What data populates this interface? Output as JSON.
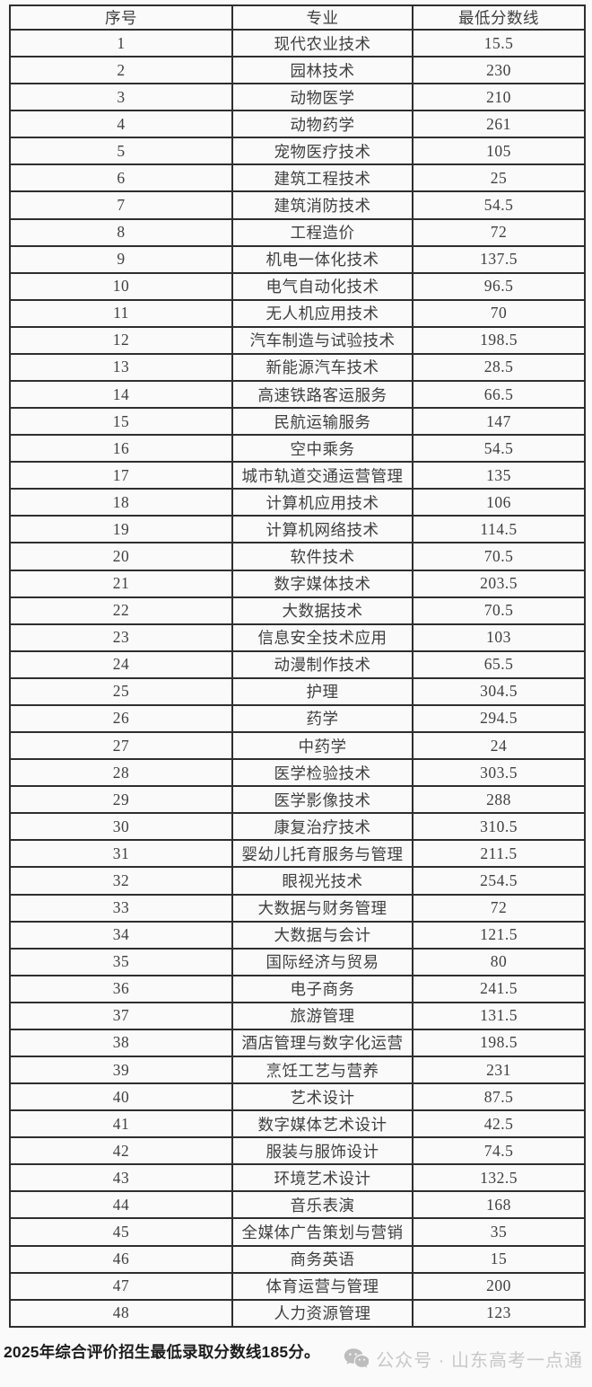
{
  "page": {
    "background": "#fbfafa"
  },
  "colors": {
    "table_border": "#2e2e2e",
    "table_text": "#3f3f3f",
    "note_text": "#1c1c1c",
    "watermark_gray": "#c8c8c8"
  },
  "table": {
    "columns": [
      "序号",
      "专业",
      "最低分数线"
    ],
    "rows": [
      [
        "1",
        "现代农业技术",
        "15.5"
      ],
      [
        "2",
        "园林技术",
        "230"
      ],
      [
        "3",
        "动物医学",
        "210"
      ],
      [
        "4",
        "动物药学",
        "261"
      ],
      [
        "5",
        "宠物医疗技术",
        "105"
      ],
      [
        "6",
        "建筑工程技术",
        "25"
      ],
      [
        "7",
        "建筑消防技术",
        "54.5"
      ],
      [
        "8",
        "工程造价",
        "72"
      ],
      [
        "9",
        "机电一体化技术",
        "137.5"
      ],
      [
        "10",
        "电气自动化技术",
        "96.5"
      ],
      [
        "11",
        "无人机应用技术",
        "70"
      ],
      [
        "12",
        "汽车制造与试验技术",
        "198.5"
      ],
      [
        "13",
        "新能源汽车技术",
        "28.5"
      ],
      [
        "14",
        "高速铁路客运服务",
        "66.5"
      ],
      [
        "15",
        "民航运输服务",
        "147"
      ],
      [
        "16",
        "空中乘务",
        "54.5"
      ],
      [
        "17",
        "城市轨道交通运营管理",
        "135"
      ],
      [
        "18",
        "计算机应用技术",
        "106"
      ],
      [
        "19",
        "计算机网络技术",
        "114.5"
      ],
      [
        "20",
        "软件技术",
        "70.5"
      ],
      [
        "21",
        "数字媒体技术",
        "203.5"
      ],
      [
        "22",
        "大数据技术",
        "70.5"
      ],
      [
        "23",
        "信息安全技术应用",
        "103"
      ],
      [
        "24",
        "动漫制作技术",
        "65.5"
      ],
      [
        "25",
        "护理",
        "304.5"
      ],
      [
        "26",
        "药学",
        "294.5"
      ],
      [
        "27",
        "中药学",
        "24"
      ],
      [
        "28",
        "医学检验技术",
        "303.5"
      ],
      [
        "29",
        "医学影像技术",
        "288"
      ],
      [
        "30",
        "康复治疗技术",
        "310.5"
      ],
      [
        "31",
        "婴幼儿托育服务与管理",
        "211.5"
      ],
      [
        "32",
        "眼视光技术",
        "254.5"
      ],
      [
        "33",
        "大数据与财务管理",
        "72"
      ],
      [
        "34",
        "大数据与会计",
        "121.5"
      ],
      [
        "35",
        "国际经济与贸易",
        "80"
      ],
      [
        "36",
        "电子商务",
        "241.5"
      ],
      [
        "37",
        "旅游管理",
        "131.5"
      ],
      [
        "38",
        "酒店管理与数字化运营",
        "198.5"
      ],
      [
        "39",
        "烹饪工艺与营养",
        "231"
      ],
      [
        "40",
        "艺术设计",
        "87.5"
      ],
      [
        "41",
        "数字媒体艺术设计",
        "42.5"
      ],
      [
        "42",
        "服装与服饰设计",
        "74.5"
      ],
      [
        "43",
        "环境艺术设计",
        "132.5"
      ],
      [
        "44",
        "音乐表演",
        "168"
      ],
      [
        "45",
        "全媒体广告策划与营销",
        "35"
      ],
      [
        "46",
        "商务英语",
        "15"
      ],
      [
        "47",
        "体育运营与管理",
        "200"
      ],
      [
        "48",
        "人力资源管理",
        "123"
      ]
    ]
  },
  "footer": {
    "note": "2025年综合评价招生最低录取分数线185分。",
    "watermark": {
      "icon": "wechat-icon",
      "label": "公众号 · 山东高考一点通"
    }
  }
}
